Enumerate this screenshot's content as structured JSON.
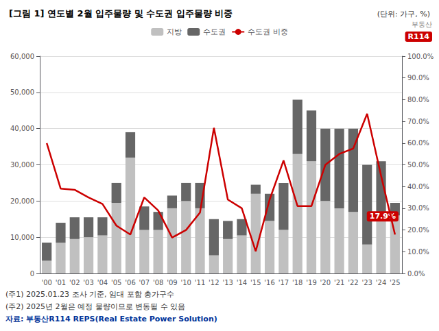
{
  "chart_data": {
    "type": "bar",
    "title": "[그림 1] 연도별 2월 입주물량 및 수도권 입주물량 비중",
    "subtitle": "(단위: 가구, %)",
    "categories": [
      "'00",
      "'01",
      "'02",
      "'03",
      "'04",
      "'05",
      "'06",
      "'07",
      "'08",
      "'09",
      "'10",
      "'11",
      "'12",
      "'13",
      "'14",
      "'15",
      "'16",
      "'17",
      "'18",
      "'19",
      "'20",
      "'21",
      "'22",
      "'23",
      "'24",
      "'25"
    ],
    "stacked": true,
    "series": [
      {
        "name": "지방",
        "color": "#c0c0c0",
        "values": [
          3500,
          8500,
          9500,
          10000,
          10500,
          19500,
          32000,
          12000,
          12000,
          18000,
          20000,
          18000,
          5000,
          9500,
          10500,
          22000,
          14500,
          12000,
          33000,
          31000,
          20000,
          18000,
          17000,
          8000,
          17000,
          16000
        ]
      },
      {
        "name": "수도권",
        "color": "#666666",
        "values": [
          5000,
          5500,
          6000,
          5500,
          5000,
          5500,
          7000,
          6500,
          5000,
          3500,
          5000,
          7000,
          10000,
          5000,
          4500,
          2500,
          7500,
          13000,
          15000,
          14000,
          20000,
          22000,
          23000,
          22000,
          14000,
          3500
        ]
      },
      {
        "name": "수도권 비중",
        "type": "line",
        "color": "#cc0000",
        "axis": "y2",
        "values": [
          60.0,
          39.0,
          38.5,
          35.0,
          32.0,
          22.0,
          17.9,
          35.0,
          29.0,
          16.5,
          20.0,
          28.0,
          67.0,
          34.0,
          30.0,
          10.2,
          34.0,
          52.0,
          31.0,
          31.0,
          50.0,
          55.0,
          57.5,
          73.5,
          45.0,
          17.9
        ]
      }
    ],
    "ylim": [
      0,
      60000
    ],
    "yticks": [
      0,
      {
        "value": 10000,
        "label": "10,000"
      },
      {
        "value": 20000,
        "label": "20,000"
      },
      {
        "value": 30000,
        "label": "30,000"
      },
      {
        "value": 40000,
        "label": "40,000"
      },
      {
        "value": 50000,
        "label": "50,000"
      },
      {
        "value": 60000,
        "label": "60,000"
      }
    ],
    "y2lim": [
      0,
      100.0
    ],
    "y2ticks": [
      {
        "value": 0.0,
        "label": "0.0%"
      },
      {
        "value": 10.0,
        "label": "10.0%"
      },
      {
        "value": 20.0,
        "label": "20.0%"
      },
      {
        "value": 30.0,
        "label": "30.0%"
      },
      {
        "value": 40.0,
        "label": "40.0%"
      },
      {
        "value": 50.0,
        "label": "50.0%"
      },
      {
        "value": 60.0,
        "label": "60.0%"
      },
      {
        "value": 70.0,
        "label": "70.0%"
      },
      {
        "value": 80.0,
        "label": "80.0%"
      },
      {
        "value": 90.0,
        "label": "90.0%"
      },
      {
        "value": 100.0,
        "label": "100.0%"
      }
    ],
    "grid": true,
    "legend": "top",
    "annotations": [
      {
        "text": "17.9%",
        "x": "'25",
        "y": 17.9,
        "axis": "y2"
      }
    ],
    "watermark": [
      "부동산",
      "R114"
    ],
    "notes": [
      "(주1) 2025.01.23 조사 기준, 임대 포함 총가구수",
      "(주2) 2025년 2월은 예정 물량이므로 변동될 수 있음"
    ],
    "source": "자료: 부동산R114 REPS(Real Estate Power Solution)"
  }
}
